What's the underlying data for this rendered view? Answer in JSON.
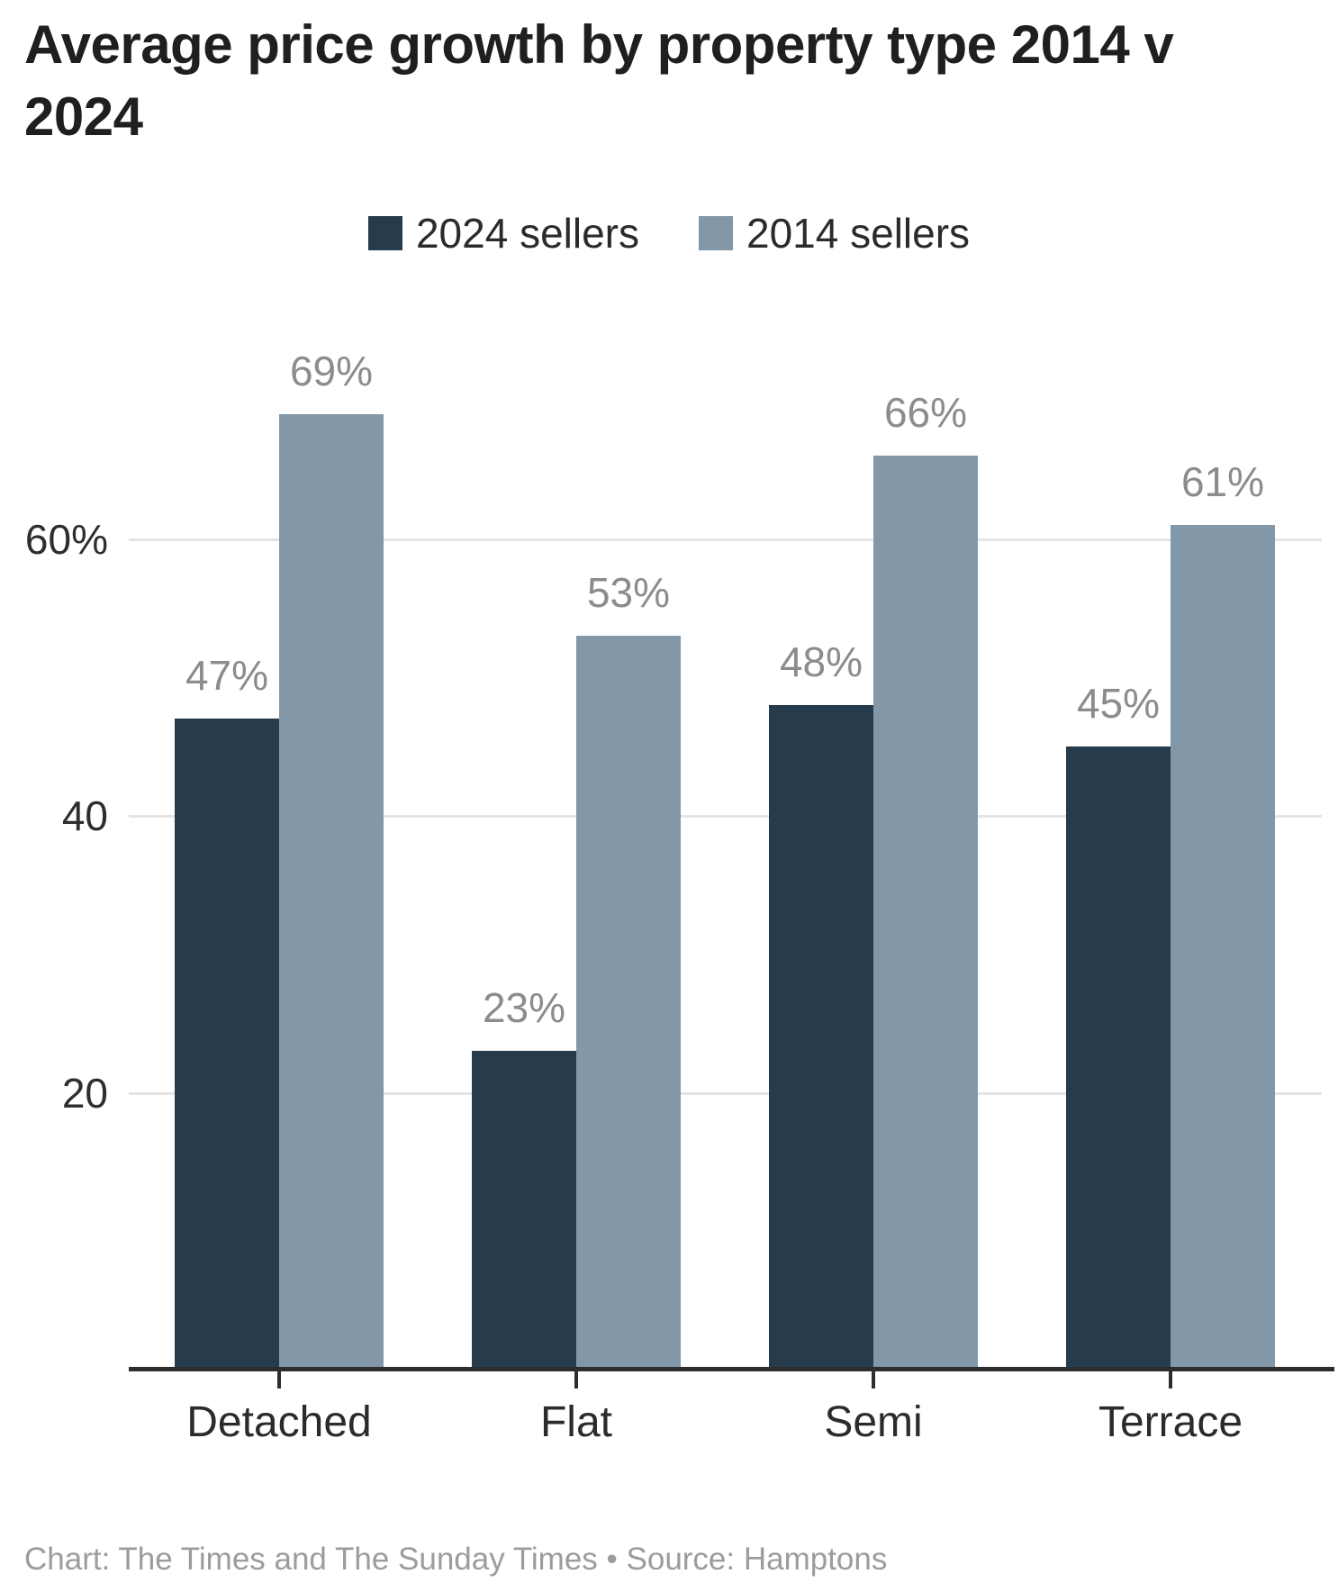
{
  "title": "Average price growth by property type 2014 v 2024",
  "footer": "Chart: The Times and The Sunday Times • Source: Hamptons",
  "colors": {
    "series_2024": "#263C4D",
    "series_2014": "#8298A9",
    "grid": "#e4e4e4",
    "axis": "#2d2d2d",
    "value_label": "#8c8c8c",
    "title_text": "#1f1f1f",
    "footer_text": "#9c9c9c"
  },
  "legend": {
    "items": [
      {
        "label": "2024 sellers",
        "color": "#263C4D"
      },
      {
        "label": "2014 sellers",
        "color": "#8298A9"
      }
    ]
  },
  "y_axis": {
    "ticks": [
      {
        "value": 20,
        "label": "20"
      },
      {
        "value": 40,
        "label": "40"
      },
      {
        "value": 60,
        "label": "60%"
      }
    ]
  },
  "chart_data": {
    "type": "bar",
    "title": "Average price growth by property type 2014 v 2024",
    "categories": [
      "Detached",
      "Flat",
      "Semi",
      "Terrace"
    ],
    "series": [
      {
        "name": "2024 sellers",
        "color": "#263C4D",
        "values": [
          47,
          23,
          48,
          45
        ]
      },
      {
        "name": "2014 sellers",
        "color": "#8298A9",
        "values": [
          69,
          53,
          66,
          61
        ]
      }
    ],
    "value_suffix": "%",
    "xlabel": "",
    "ylabel": "",
    "ylim": [
      0,
      75
    ],
    "grid": true,
    "legend_position": "top",
    "annotation_labels": [
      "47%",
      "23%",
      "48%",
      "45%",
      "69%",
      "53%",
      "66%",
      "61%"
    ],
    "source": "Hamptons",
    "credit": "The Times and The Sunday Times"
  }
}
